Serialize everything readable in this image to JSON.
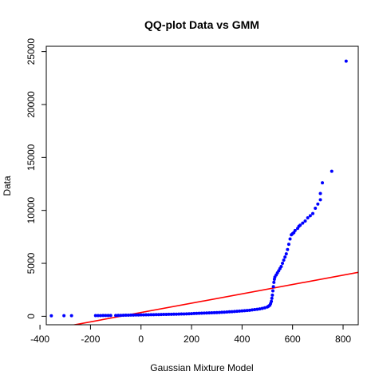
{
  "chart_data": {
    "type": "scatter",
    "title": "QQ-plot Data vs GMM",
    "xlabel": "Gaussian Mixture Model",
    "ylabel": "Data",
    "xlim": [
      -375,
      860
    ],
    "ylim": [
      -800,
      25500
    ],
    "x_ticks": [
      -400,
      -200,
      0,
      200,
      400,
      600,
      800
    ],
    "y_ticks": [
      0,
      5000,
      10000,
      15000,
      20000,
      25000
    ],
    "grid": false,
    "legend": "none",
    "point_color": "#0000ff",
    "line_color": "#ff0000",
    "reference_line": {
      "x": [
        -375,
        860
      ],
      "y": [
        -1300,
        4150
      ]
    },
    "series": [
      {
        "points": [
          [
            -355,
            50
          ],
          [
            -305,
            55
          ],
          [
            -275,
            60
          ],
          [
            -180,
            65
          ],
          [
            -170,
            68
          ],
          [
            -160,
            70
          ],
          [
            -150,
            72
          ],
          [
            -140,
            74
          ],
          [
            -130,
            75
          ],
          [
            -120,
            77
          ],
          [
            -100,
            80
          ],
          [
            -90,
            85
          ],
          [
            -80,
            90
          ],
          [
            -70,
            95
          ],
          [
            -60,
            100
          ],
          [
            -50,
            105
          ],
          [
            -40,
            110
          ],
          [
            -30,
            115
          ],
          [
            -20,
            120
          ],
          [
            -10,
            125
          ],
          [
            0,
            130
          ],
          [
            10,
            135
          ],
          [
            20,
            140
          ],
          [
            30,
            145
          ],
          [
            40,
            150
          ],
          [
            50,
            155
          ],
          [
            60,
            160
          ],
          [
            70,
            165
          ],
          [
            80,
            170
          ],
          [
            90,
            175
          ],
          [
            100,
            180
          ],
          [
            110,
            185
          ],
          [
            120,
            190
          ],
          [
            130,
            195
          ],
          [
            140,
            200
          ],
          [
            150,
            210
          ],
          [
            160,
            215
          ],
          [
            170,
            220
          ],
          [
            180,
            230
          ],
          [
            190,
            240
          ],
          [
            200,
            250
          ],
          [
            210,
            260
          ],
          [
            220,
            270
          ],
          [
            230,
            280
          ],
          [
            240,
            290
          ],
          [
            250,
            300
          ],
          [
            260,
            310
          ],
          [
            270,
            320
          ],
          [
            280,
            330
          ],
          [
            290,
            340
          ],
          [
            300,
            350
          ],
          [
            310,
            360
          ],
          [
            320,
            375
          ],
          [
            330,
            390
          ],
          [
            340,
            405
          ],
          [
            350,
            420
          ],
          [
            360,
            435
          ],
          [
            370,
            450
          ],
          [
            380,
            470
          ],
          [
            390,
            490
          ],
          [
            400,
            510
          ],
          [
            410,
            530
          ],
          [
            420,
            550
          ],
          [
            430,
            570
          ],
          [
            440,
            600
          ],
          [
            450,
            630
          ],
          [
            460,
            660
          ],
          [
            470,
            700
          ],
          [
            480,
            740
          ],
          [
            490,
            800
          ],
          [
            500,
            880
          ],
          [
            505,
            950
          ],
          [
            510,
            1050
          ],
          [
            513,
            1200
          ],
          [
            516,
            1400
          ],
          [
            518,
            1700
          ],
          [
            520,
            2000
          ],
          [
            522,
            2400
          ],
          [
            524,
            2800
          ],
          [
            526,
            3200
          ],
          [
            528,
            3500
          ],
          [
            530,
            3700
          ],
          [
            535,
            3900
          ],
          [
            540,
            4100
          ],
          [
            545,
            4300
          ],
          [
            550,
            4500
          ],
          [
            555,
            4700
          ],
          [
            560,
            5000
          ],
          [
            565,
            5300
          ],
          [
            570,
            5600
          ],
          [
            575,
            5900
          ],
          [
            580,
            6300
          ],
          [
            585,
            6800
          ],
          [
            590,
            7300
          ],
          [
            595,
            7700
          ],
          [
            600,
            7800
          ],
          [
            605,
            7900
          ],
          [
            610,
            8100
          ],
          [
            620,
            8300
          ],
          [
            625,
            8500
          ],
          [
            630,
            8600
          ],
          [
            640,
            8800
          ],
          [
            650,
            9000
          ],
          [
            660,
            9300
          ],
          [
            670,
            9500
          ],
          [
            680,
            9700
          ],
          [
            690,
            10200
          ],
          [
            700,
            10600
          ],
          [
            710,
            11000
          ],
          [
            710,
            11600
          ],
          [
            718,
            12600
          ],
          [
            755,
            13700
          ],
          [
            812,
            24100
          ]
        ]
      }
    ]
  }
}
